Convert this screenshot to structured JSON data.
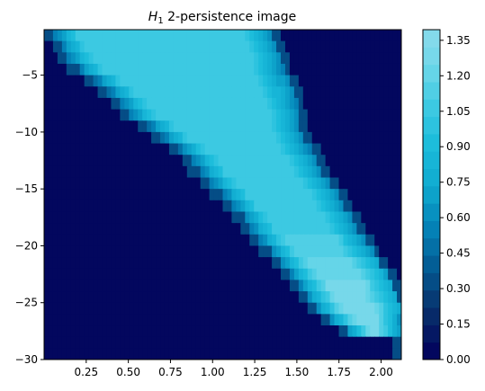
{
  "chart_data": {
    "type": "heatmap",
    "title_symbol": "H",
    "title_subscript": "1",
    "title_text": " 2-persistence image",
    "xlabel": "",
    "ylabel": "",
    "xlim": [
      0.0,
      2.12
    ],
    "ylim": [
      -30,
      -1
    ],
    "x_ticks": [
      0.25,
      0.5,
      0.75,
      1.0,
      1.25,
      1.5,
      1.75,
      2.0
    ],
    "x_tick_labels": [
      "0.25",
      "0.50",
      "0.75",
      "1.00",
      "1.25",
      "1.50",
      "1.75",
      "2.00"
    ],
    "y_ticks": [
      -5,
      -10,
      -15,
      -20,
      -25,
      -30
    ],
    "y_tick_labels": [
      "−5",
      "−10",
      "−15",
      "−20",
      "−25",
      "−30"
    ],
    "colorbar": {
      "min": 0.0,
      "max": 1.395,
      "ticks": [
        0.0,
        0.15,
        0.3,
        0.45,
        0.6,
        0.75,
        0.9,
        1.05,
        1.2,
        1.35
      ],
      "tick_labels": [
        "0.00",
        "0.15",
        "0.30",
        "0.45",
        "0.60",
        "0.75",
        "0.90",
        "1.05",
        "1.20",
        "1.35"
      ],
      "levels": 19,
      "colors": [
        "#03075e",
        "#08306b",
        "#035a92",
        "#0483b8",
        "#10aacf",
        "#1bbcdb",
        "#40cbe3",
        "#72d8ea",
        "#8fdbec"
      ]
    },
    "band": {
      "description_rows_y": [
        -1,
        -2,
        -3,
        -4,
        -5,
        -6,
        -7,
        -8,
        -9,
        -10,
        -11,
        -12,
        -13,
        -14,
        -15,
        -16,
        -17,
        -18,
        -19,
        -20,
        -21,
        -22,
        -23,
        -24,
        -25,
        -26,
        -27,
        -28,
        -29,
        -30
      ],
      "left_edge_x": [
        0.06,
        0.1,
        0.14,
        0.2,
        0.3,
        0.38,
        0.45,
        0.5,
        0.62,
        0.7,
        0.8,
        0.87,
        0.92,
        0.98,
        1.05,
        1.12,
        1.18,
        1.22,
        1.28,
        1.34,
        1.4,
        1.46,
        1.52,
        1.56,
        1.62,
        1.7,
        1.8,
        2.12,
        2.12,
        2.12
      ],
      "right_edge_x": [
        1.35,
        1.38,
        1.4,
        1.42,
        1.45,
        1.48,
        1.5,
        1.52,
        1.52,
        1.55,
        1.58,
        1.62,
        1.65,
        1.7,
        1.75,
        1.78,
        1.82,
        1.86,
        1.9,
        1.95,
        2.0,
        2.05,
        2.08,
        2.1,
        2.12,
        2.12,
        2.12,
        2.12,
        2.12,
        2.12
      ],
      "peak_value_rows": [
        1.1,
        1.1,
        1.1,
        1.05,
        1.05,
        1.05,
        1.05,
        1.05,
        1.05,
        1.05,
        1.05,
        1.05,
        1.05,
        1.05,
        1.05,
        1.1,
        1.1,
        1.1,
        1.15,
        1.15,
        1.2,
        1.2,
        1.25,
        1.25,
        1.3,
        1.3,
        1.35,
        1.38,
        0.2,
        0.0
      ]
    }
  }
}
